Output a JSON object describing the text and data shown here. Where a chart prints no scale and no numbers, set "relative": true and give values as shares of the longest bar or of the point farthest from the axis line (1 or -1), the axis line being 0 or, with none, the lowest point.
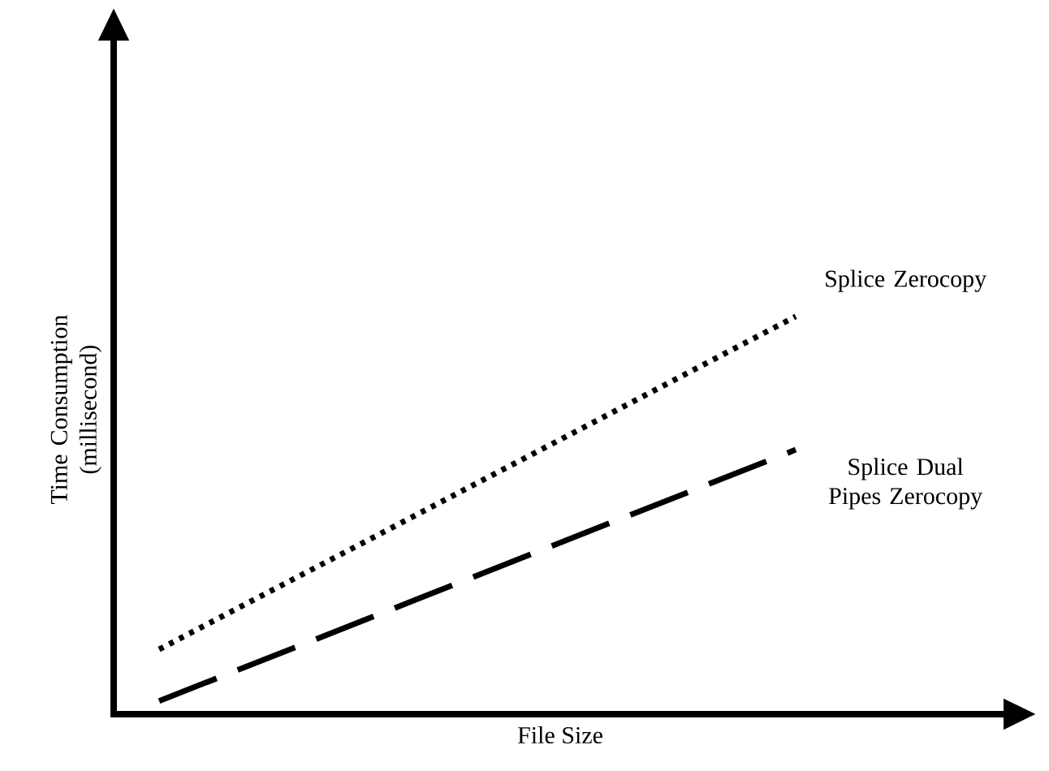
{
  "chart_data": {
    "type": "line",
    "relative": true,
    "xlabel": "File Size",
    "ylabel": "Time Consumption (millisecond)",
    "categories": [
      null,
      null
    ],
    "series": [
      {
        "name": "Splice Zerocopy",
        "color": "#000000",
        "line_style": "dotted",
        "values": [
          0.163,
          1.0
        ]
      },
      {
        "name": "Splice Dual Pipes Zerocopy",
        "color": "#000000",
        "line_style": "dashed",
        "values": [
          0.033,
          0.665
        ]
      }
    ]
  }
}
